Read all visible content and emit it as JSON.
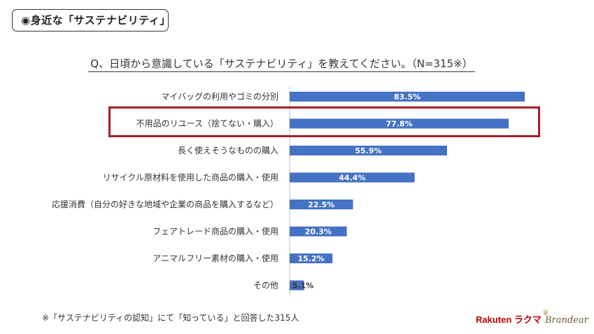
{
  "header": {
    "title": "◉身近な「サステナビリティ」"
  },
  "question": "Q、日頃から意識している「サステナビリティ」を教えてください。（N=315※）",
  "footnote": "※「サステナビリティの認知」にて「知っている」と回答した315人",
  "logos": {
    "rakuten": "Rakuten ラクマ",
    "brandear": "Brandear"
  },
  "colors": {
    "bar": "#4472c4",
    "highlight": "#a51d25"
  },
  "chart_data": {
    "type": "bar",
    "orientation": "horizontal",
    "categories": [
      "マイバッグの利用やゴミの分別",
      "不用品のリユース（捨てない・購入）",
      "長く使えそうなものの購入",
      "リサイクル原材料を使用した商品の購入・使用",
      "応援消費（自分の好きな地域や企業の商品を購入するなど）",
      "フェアトレード商品の購入・使用",
      "アニマルフリー素材の購入・使用",
      "その他"
    ],
    "values": [
      83.5,
      77.8,
      55.9,
      44.4,
      22.5,
      20.3,
      15.2,
      5.1
    ],
    "value_labels": [
      "83.5%",
      "77.8%",
      "55.9%",
      "44.4%",
      "22.5%",
      "20.3%",
      "15.2%",
      "5.1%"
    ],
    "xlim": [
      0,
      100
    ],
    "highlighted_category": "不用品のリユース（捨てない・購入）",
    "grid": false
  }
}
